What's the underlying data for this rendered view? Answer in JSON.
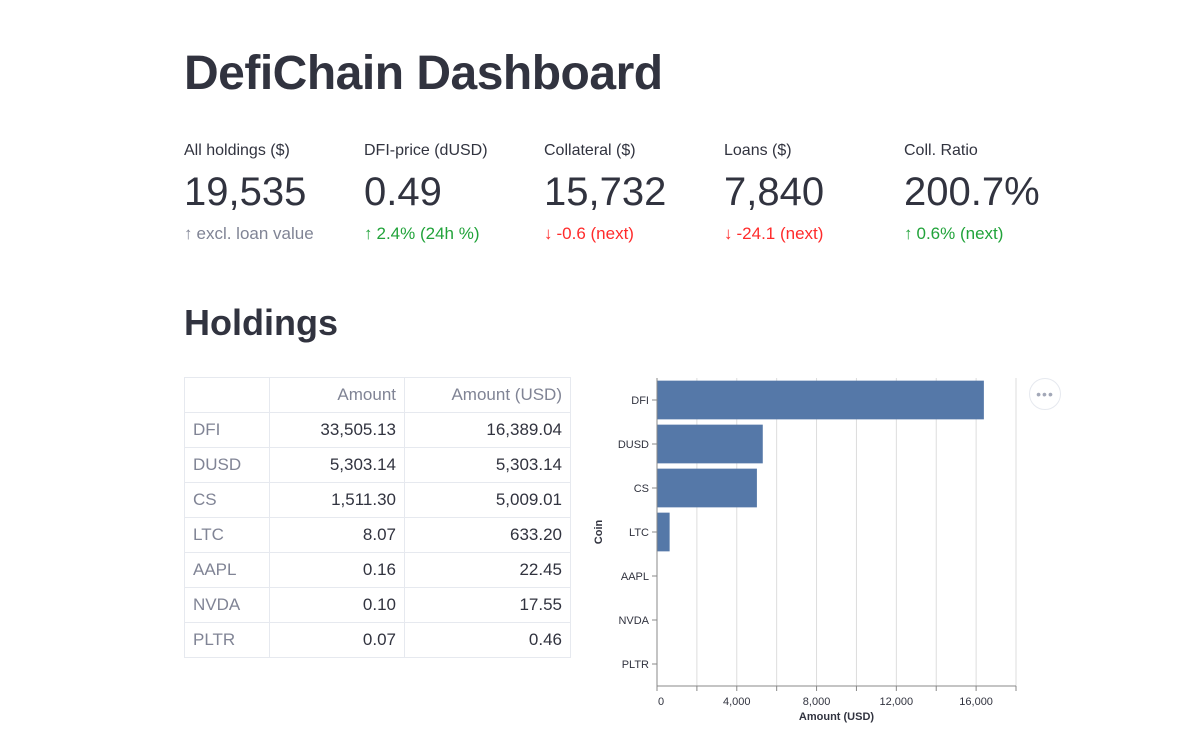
{
  "page": {
    "title": "DefiChain Dashboard"
  },
  "metrics": [
    {
      "label": "All holdings ($)",
      "value": "19,535",
      "delta": "excl. loan value",
      "direction": "neutral"
    },
    {
      "label": "DFI-price (dUSD)",
      "value": "0.49",
      "delta": "2.4% (24h %)",
      "direction": "up"
    },
    {
      "label": "Collateral ($)",
      "value": "15,732",
      "delta": "-0.6 (next)",
      "direction": "down"
    },
    {
      "label": "Loans ($)",
      "value": "7,840",
      "delta": "-24.1 (next)",
      "direction": "down"
    },
    {
      "label": "Coll. Ratio",
      "value": "200.7%",
      "delta": "0.6% (next)",
      "direction": "up"
    }
  ],
  "holdings": {
    "section_title": "Holdings",
    "columns": [
      "",
      "Amount",
      "Amount (USD)"
    ],
    "rows": [
      {
        "coin": "DFI",
        "amount": "33,505.13",
        "amount_usd": "16,389.04"
      },
      {
        "coin": "DUSD",
        "amount": "5,303.14",
        "amount_usd": "5,303.14"
      },
      {
        "coin": "CS",
        "amount": "1,511.30",
        "amount_usd": "5,009.01"
      },
      {
        "coin": "LTC",
        "amount": "8.07",
        "amount_usd": "633.20"
      },
      {
        "coin": "AAPL",
        "amount": "0.16",
        "amount_usd": "22.45"
      },
      {
        "coin": "NVDA",
        "amount": "0.10",
        "amount_usd": "17.55"
      },
      {
        "coin": "PLTR",
        "amount": "0.07",
        "amount_usd": "0.46"
      }
    ]
  },
  "chart_data": {
    "type": "bar",
    "orientation": "horizontal",
    "categories": [
      "DFI",
      "DUSD",
      "CS",
      "LTC",
      "AAPL",
      "NVDA",
      "PLTR"
    ],
    "values": [
      16389.04,
      5303.14,
      5009.01,
      633.2,
      22.45,
      17.55,
      0.46
    ],
    "xlabel": "Amount (USD)",
    "ylabel": "Coin",
    "xlim": [
      0,
      18000
    ],
    "xticks": [
      0,
      4000,
      8000,
      12000,
      16000
    ],
    "xtick_labels": [
      "0",
      "4,000",
      "8,000",
      "12,000",
      "16,000"
    ],
    "grid": true,
    "bar_color": "#5578a8"
  },
  "toolbar": {
    "more_icon": "ellipsis-icon",
    "more_label": "•••"
  },
  "colors": {
    "up": "#21a33a",
    "down": "#ff2b2b",
    "neutral": "#808495",
    "text": "#31333f"
  }
}
